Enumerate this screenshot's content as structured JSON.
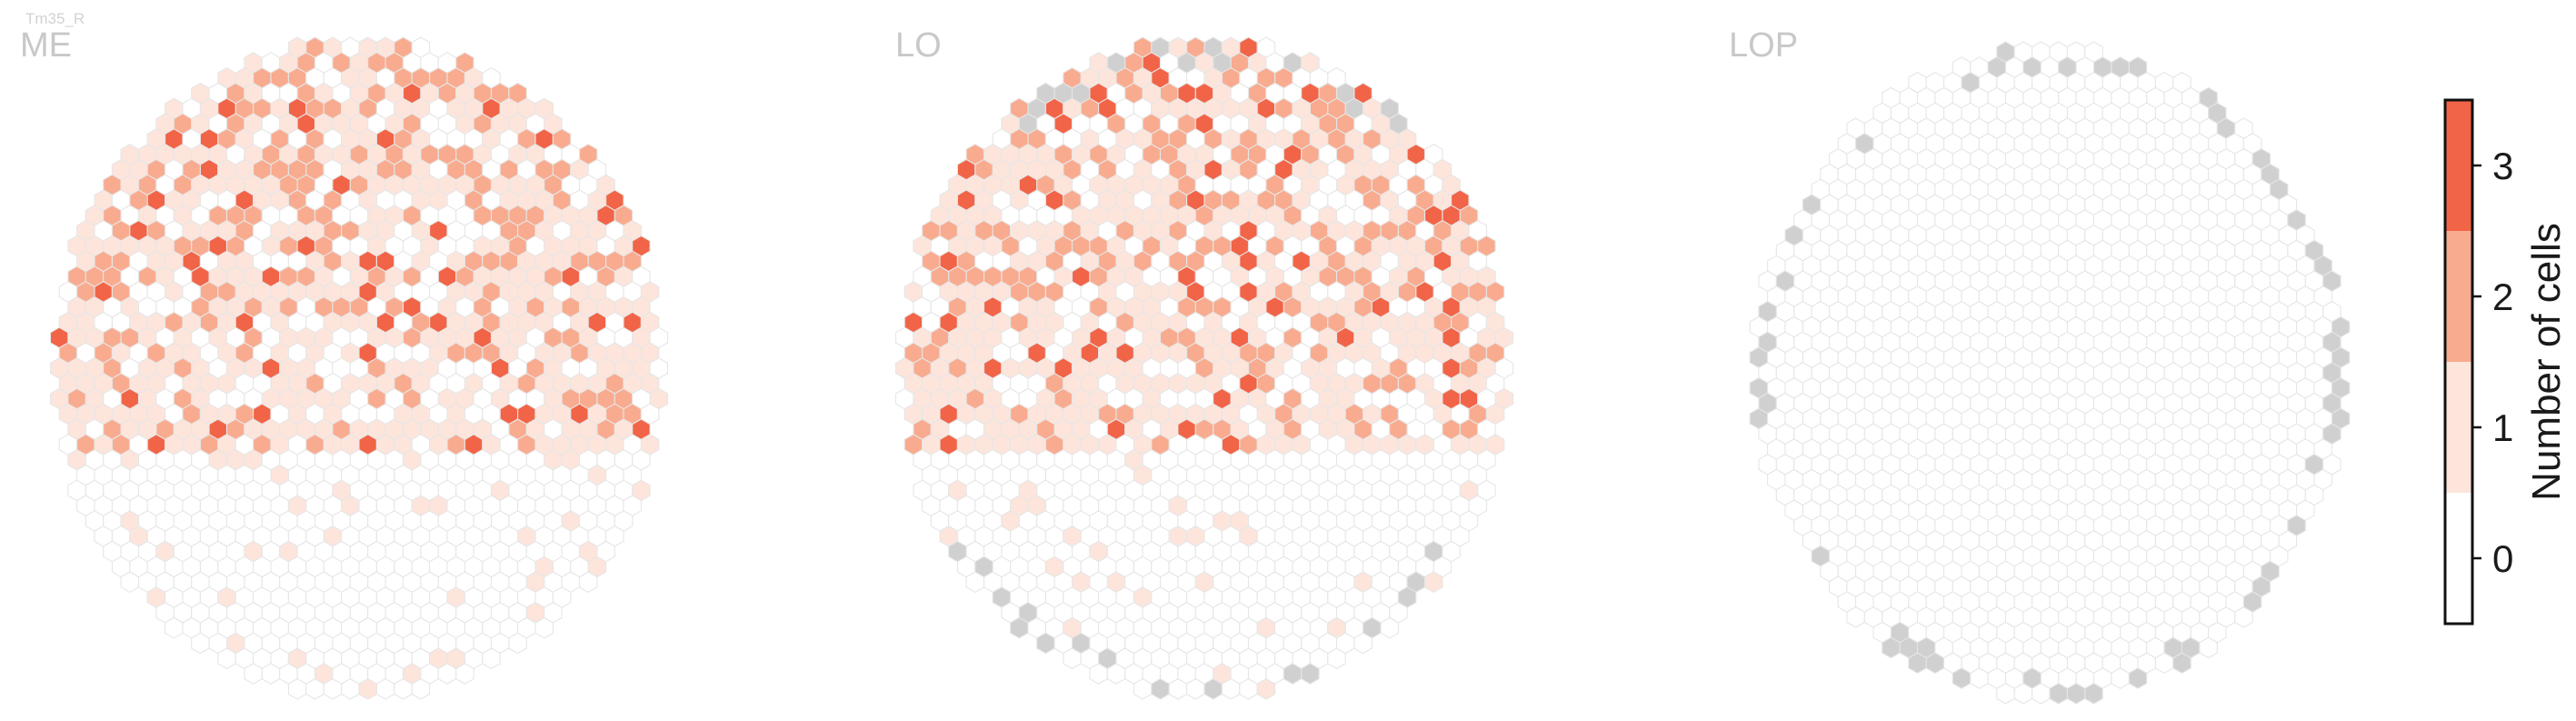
{
  "figure": {
    "cell_type_label": "Tm35_R",
    "colors": {
      "value_0": "#ffffff",
      "value_1": "#fde5dc",
      "value_2": "#f9ab8f",
      "value_3": "#f26447",
      "no_column": "#d0d0d0",
      "hex_edge": "#e6e6e6"
    }
  },
  "colorbar": {
    "label": "Number of cells",
    "ticks": [
      "0",
      "1",
      "2",
      "3"
    ],
    "range": [
      -0.5,
      3.5
    ]
  },
  "chart_data": [
    {
      "type": "heatmap",
      "title": "ME",
      "grid": "hexagonal column map",
      "value_counts": {
        "0": 430,
        "1": 330,
        "2": 160,
        "3": 20
      },
      "hot_region": "upper half",
      "no_column_cells": 0
    },
    {
      "type": "heatmap",
      "title": "LO",
      "grid": "hexagonal column map",
      "value_counts": {
        "0": 380,
        "1": 300,
        "2": 150,
        "3": 20
      },
      "hot_region": "upper half",
      "no_column_cells": 22
    },
    {
      "type": "heatmap",
      "title": "LOP",
      "grid": "hexagonal column map",
      "value_counts": {
        "0": 720,
        "1": 0,
        "2": 0,
        "3": 0
      },
      "hot_region": "none",
      "no_column_cells": 60
    }
  ]
}
